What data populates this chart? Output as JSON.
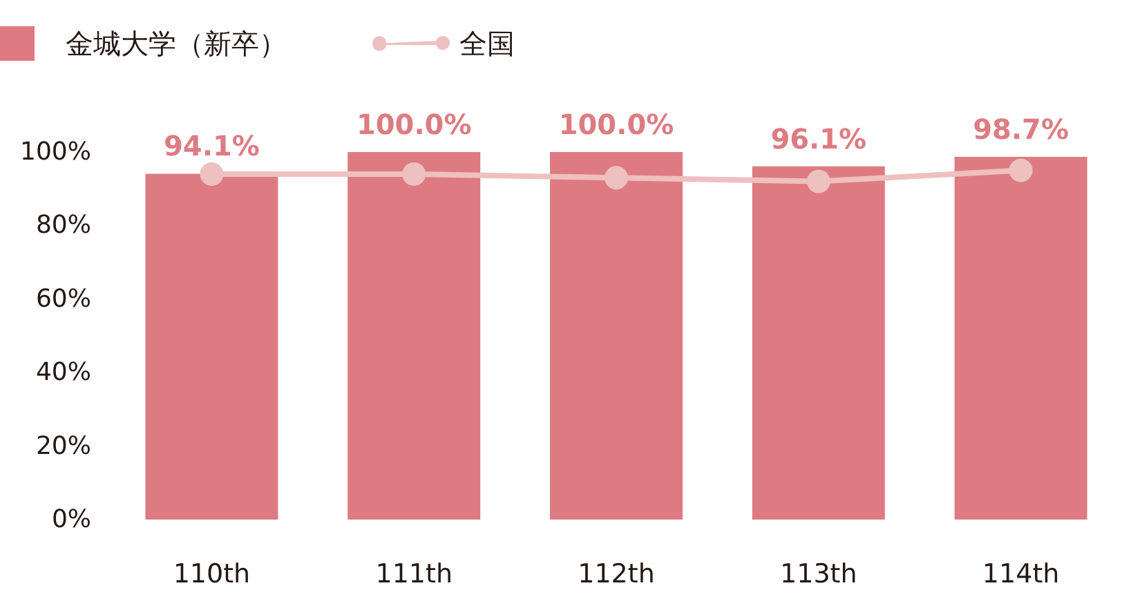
{
  "chart_data": {
    "type": "bar",
    "categories": [
      "110th",
      "111th",
      "112th",
      "113th",
      "114th"
    ],
    "series": [
      {
        "name": "金城大学（新卒）",
        "color": "#de7b82",
        "values": [
          94.1,
          100,
          100,
          96.1,
          98.7
        ],
        "value_labels": [
          "94.1%",
          "100.0%",
          "100.0%",
          "96.1%",
          "98.7%"
        ]
      },
      {
        "name": "全国",
        "type": "line",
        "color": "#eec0c0",
        "values": [
          94,
          94,
          93,
          92,
          95
        ],
        "marker": "circle",
        "line_style": "solid"
      }
    ],
    "ylim": [
      0,
      100
    ],
    "yticks": [
      {
        "value": 0,
        "label": "0%"
      },
      {
        "value": 20,
        "label": "20%"
      },
      {
        "value": 40,
        "label": "40%"
      },
      {
        "value": 60,
        "label": "60%"
      },
      {
        "value": 80,
        "label": "80%"
      },
      {
        "value": 100,
        "label": "100%"
      }
    ],
    "grid": false,
    "legend": "top left"
  }
}
